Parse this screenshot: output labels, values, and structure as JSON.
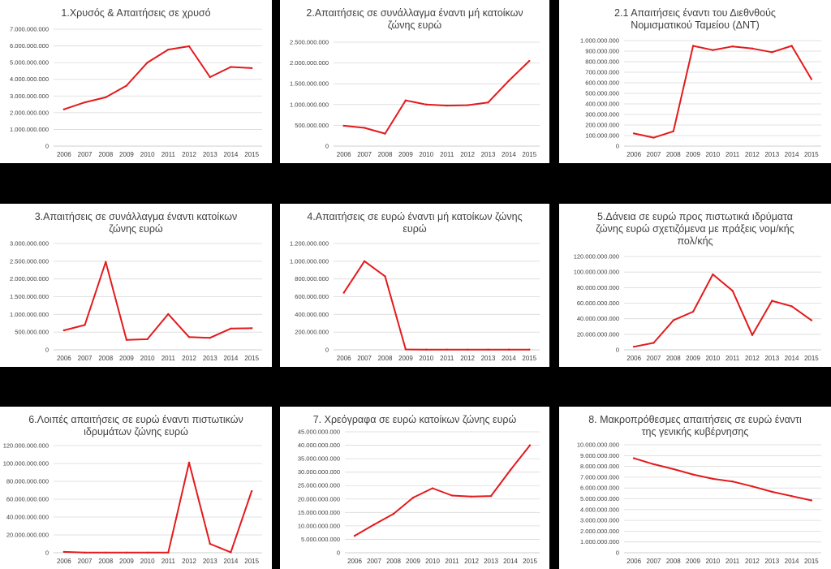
{
  "chart_data": [
    {
      "type": "line",
      "title": [
        "1.Χρυσός & Απαιτήσεις σε χρυσό"
      ],
      "categories": [
        "2006",
        "2007",
        "2008",
        "2009",
        "2010",
        "2011",
        "2012",
        "2013",
        "2014",
        "2015"
      ],
      "values": [
        2200000000,
        2620000000,
        2920000000,
        3620000000,
        5000000000,
        5780000000,
        5980000000,
        4130000000,
        4740000000,
        4670000000
      ],
      "ylim": [
        0,
        7000000000
      ],
      "yticks": [
        "0",
        "1.000.000.000",
        "2.000.000.000",
        "3.000.000.000",
        "4.000.000.000",
        "5.000.000.000",
        "6.000.000.000",
        "7.000.000.000"
      ],
      "series_color": "#e31a1c",
      "grid": true
    },
    {
      "type": "line",
      "title": [
        "2.Απαιτήσεις σε συνάλλαγμα έναντι μή κατοίκων",
        "ζώνης ευρώ"
      ],
      "categories": [
        "2006",
        "2007",
        "2008",
        "2009",
        "2010",
        "2011",
        "2012",
        "2013",
        "2014",
        "2015"
      ],
      "values": [
        490000000,
        440000000,
        300000000,
        1100000000,
        1000000000,
        975000000,
        985000000,
        1050000000,
        1570000000,
        2050000000
      ],
      "ylim": [
        0,
        2500000000
      ],
      "yticks": [
        "0",
        "500.000.000",
        "1.000.000.000",
        "1.500.000.000",
        "2.000.000.000",
        "2.500.000.000"
      ],
      "series_color": "#e31a1c",
      "grid": true
    },
    {
      "type": "line",
      "title": [
        "2.1 Απαιτήσεις έναντι του Διεθνθούς",
        "Νομισματικού Ταμείου (ΔΝΤ)"
      ],
      "categories": [
        "2006",
        "2007",
        "2008",
        "2009",
        "2010",
        "2011",
        "2012",
        "2013",
        "2014",
        "2015"
      ],
      "values": [
        120000000,
        80000000,
        140000000,
        950000000,
        910000000,
        945000000,
        925000000,
        890000000,
        950000000,
        635000000
      ],
      "ylim": [
        0,
        1000000000
      ],
      "yticks": [
        "0",
        "100.000.000",
        "200.000.000",
        "300.000.000",
        "400.000.000",
        "500.000.000",
        "600.000.000",
        "700.000.000",
        "800.000.000",
        "900.000.000",
        "1.000.000.000"
      ],
      "series_color": "#e31a1c",
      "grid": true
    },
    {
      "type": "line",
      "title": [
        "3.Απαιτήσεις σε συνάλλαγμα έναντι κατοίκων",
        "ζώνης ευρώ"
      ],
      "categories": [
        "2006",
        "2007",
        "2008",
        "2009",
        "2010",
        "2011",
        "2012",
        "2013",
        "2014",
        "2015"
      ],
      "values": [
        550000000,
        700000000,
        2480000000,
        280000000,
        300000000,
        1010000000,
        360000000,
        340000000,
        600000000,
        610000000
      ],
      "ylim": [
        0,
        3000000000
      ],
      "yticks": [
        "0",
        "500.000.000",
        "1.000.000.000",
        "1.500.000.000",
        "2.000.000.000",
        "2.500.000.000",
        "3.000.000.000"
      ],
      "series_color": "#e31a1c",
      "grid": true
    },
    {
      "type": "line",
      "title": [
        "4.Απαιτήσεις σε ευρώ έναντι μή κατοίκων ζώνης",
        "ευρώ"
      ],
      "categories": [
        "2006",
        "2007",
        "2008",
        "2009",
        "2010",
        "2011",
        "2012",
        "2013",
        "2014",
        "2015"
      ],
      "values": [
        645000000,
        1000000000,
        830000000,
        5000000,
        3000000,
        3000000,
        3000000,
        3000000,
        3000000,
        3000000
      ],
      "ylim": [
        0,
        1200000000
      ],
      "yticks": [
        "0",
        "200.000.000",
        "400.000.000",
        "600.000.000",
        "800.000.000",
        "1.000.000.000",
        "1.200.000.000"
      ],
      "series_color": "#e31a1c",
      "grid": true
    },
    {
      "type": "line",
      "title": [
        "5.Δάνεια σε ευρώ προς πιστωτικά ιδρύματα",
        "ζώνης ευρώ σχετιζόμενα με πράξεις νομ/κής",
        "πολ/κής"
      ],
      "categories": [
        "2006",
        "2007",
        "2008",
        "2009",
        "2010",
        "2011",
        "2012",
        "2013",
        "2014",
        "2015"
      ],
      "values": [
        4000000000,
        9000000000,
        38000000000,
        49000000000,
        97000000000,
        76000000000,
        19000000000,
        63000000000,
        56000000000,
        38000000000
      ],
      "ylim": [
        0,
        120000000000
      ],
      "yticks": [
        "0",
        "20.000.000.000",
        "40.000.000.000",
        "60.000.000.000",
        "80.000.000.000",
        "100.000.000.000",
        "120.000.000.000"
      ],
      "series_color": "#e31a1c",
      "grid": true
    },
    {
      "type": "line",
      "title": [
        "6.Λοιπές απαιτήσεις σε ευρώ έναντι πιστωτικών",
        "ιδρυμάτων ζώνης ευρώ"
      ],
      "categories": [
        "2006",
        "2007",
        "2008",
        "2009",
        "2010",
        "2011",
        "2012",
        "2013",
        "2014",
        "2015"
      ],
      "values": [
        1000000000,
        200000000,
        200000000,
        200000000,
        200000000,
        200000000,
        101000000000,
        10000000000,
        500000000,
        69000000000
      ],
      "ylim": [
        0,
        120000000000
      ],
      "yticks": [
        "0",
        "20.000.000.000",
        "40.000.000.000",
        "60.000.000.000",
        "80.000.000.000",
        "100.000.000.000",
        "120.000.000.000"
      ],
      "series_color": "#e31a1c",
      "grid": true
    },
    {
      "type": "line",
      "title": [
        "7. Χρεόγραφα σε ευρώ κατοίκων ζώνης ευρώ"
      ],
      "categories": [
        "2006",
        "2007",
        "2008",
        "2009",
        "2010",
        "2011",
        "2012",
        "2013",
        "2014",
        "2015"
      ],
      "values": [
        6300000000,
        10500000000,
        14500000000,
        20500000000,
        24000000000,
        21300000000,
        20900000000,
        21100000000,
        30800000000,
        40000000000
      ],
      "ylim": [
        0,
        45000000000
      ],
      "yticks": [
        "0",
        "5.000.000.000",
        "10.000.000.000",
        "15.000.000.000",
        "20.000.000.000",
        "25.000.000.000",
        "30.000.000.000",
        "35.000.000.000",
        "40.000.000.000",
        "45.000.000.000"
      ],
      "series_color": "#e31a1c",
      "grid": true
    },
    {
      "type": "line",
      "title": [
        "8. Μακροπρόθεσμες απαιτήσεις σε ευρώ έναντι",
        "της γενικής κυβέρνησης"
      ],
      "categories": [
        "2006",
        "2007",
        "2008",
        "2009",
        "2010",
        "2011",
        "2012",
        "2013",
        "2014",
        "2015"
      ],
      "values": [
        8750000000,
        8200000000,
        7750000000,
        7250000000,
        6850000000,
        6600000000,
        6150000000,
        5650000000,
        5250000000,
        4850000000
      ],
      "ylim": [
        0,
        10000000000
      ],
      "yticks": [
        "0",
        "1.000.000.000",
        "2.000.000.000",
        "3.000.000.000",
        "4.000.000.000",
        "5.000.000.000",
        "6.000.000.000",
        "7.000.000.000",
        "8.000.000.000",
        "9.000.000.000",
        "10.000.000.000"
      ],
      "series_color": "#e31a1c",
      "grid": true
    }
  ]
}
